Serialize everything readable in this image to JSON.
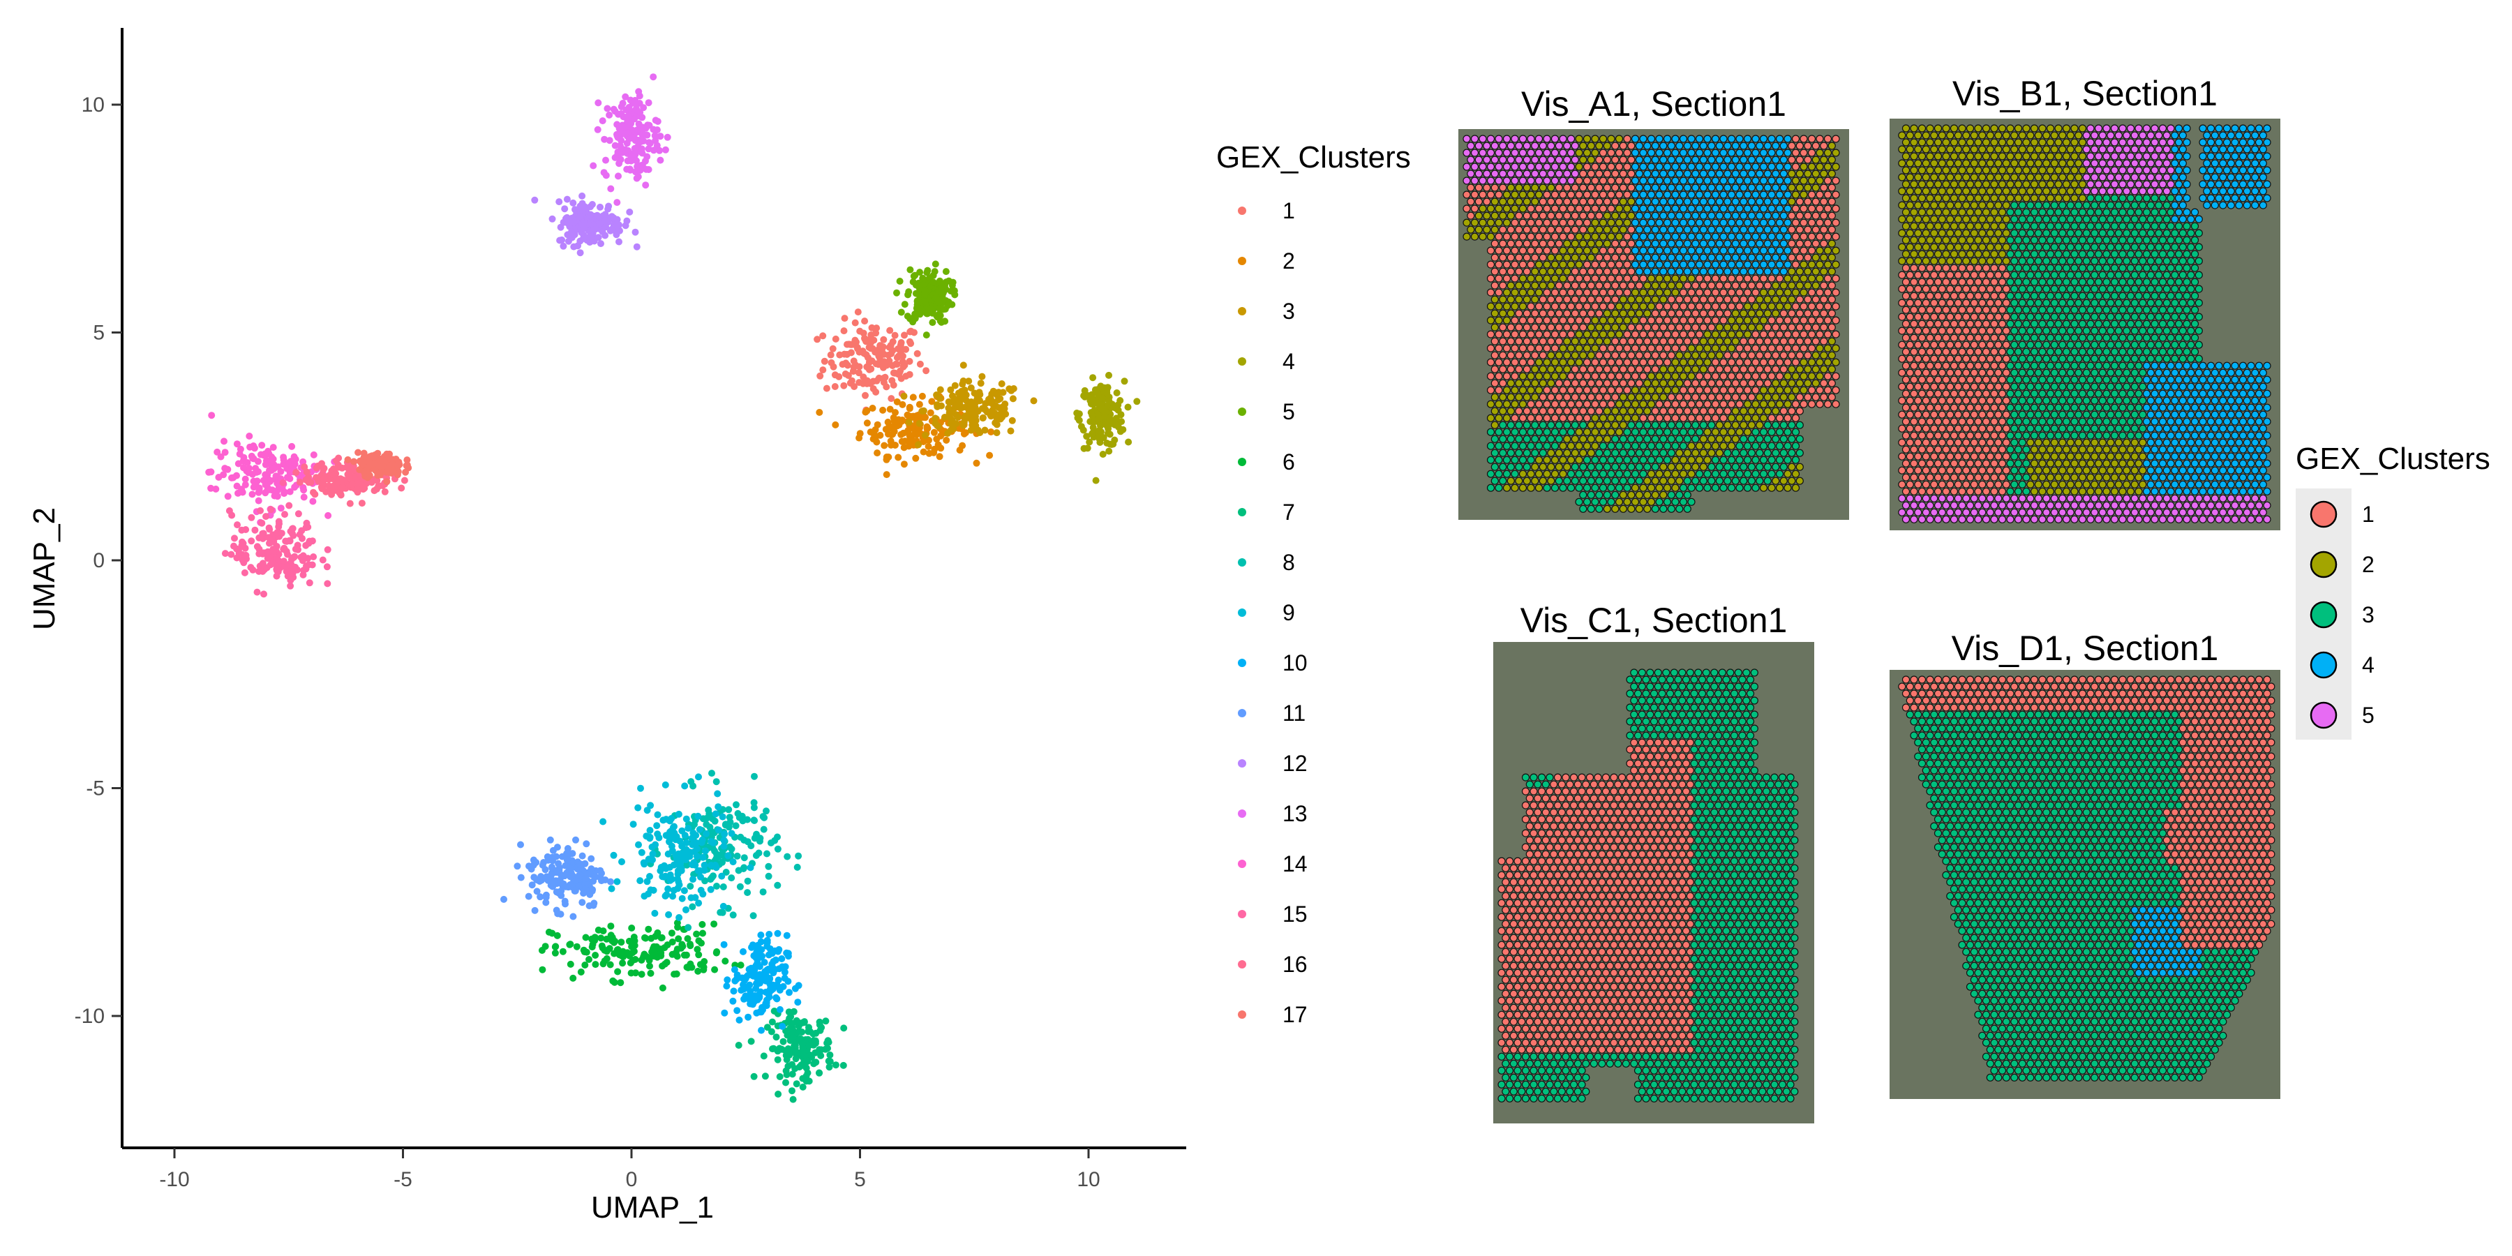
{
  "umap": {
    "x_label": "UMAP_1",
    "y_label": "UMAP_2",
    "x_ticks": [
      "-10",
      "-5",
      "0",
      "5",
      "10"
    ],
    "y_ticks": [
      "-10",
      "-5",
      "0",
      "5",
      "10"
    ]
  },
  "umap_legend": {
    "title": "GEX_Clusters",
    "items": [
      {
        "label": "1",
        "color": "#F8766D"
      },
      {
        "label": "2",
        "color": "#E58700"
      },
      {
        "label": "3",
        "color": "#C99800"
      },
      {
        "label": "4",
        "color": "#A3A500"
      },
      {
        "label": "5",
        "color": "#6BB100"
      },
      {
        "label": "6",
        "color": "#00BA38"
      },
      {
        "label": "7",
        "color": "#00BF7D"
      },
      {
        "label": "8",
        "color": "#00C0AF"
      },
      {
        "label": "9",
        "color": "#00BCD8"
      },
      {
        "label": "10",
        "color": "#00B0F6"
      },
      {
        "label": "11",
        "color": "#619CFF"
      },
      {
        "label": "12",
        "color": "#B983FF"
      },
      {
        "label": "13",
        "color": "#E76BF3"
      },
      {
        "label": "14",
        "color": "#FD61D1"
      },
      {
        "label": "15",
        "color": "#FF67A4"
      },
      {
        "label": "16",
        "color": "#FF6C91"
      },
      {
        "label": "17",
        "color": "#F8766D"
      }
    ]
  },
  "spatial_legend": {
    "title": "GEX_Clusters",
    "items": [
      {
        "label": "1",
        "color": "#F8766D"
      },
      {
        "label": "2",
        "color": "#A3A500"
      },
      {
        "label": "3",
        "color": "#00BF7D"
      },
      {
        "label": "4",
        "color": "#00B0F6"
      },
      {
        "label": "5",
        "color": "#E76BF3"
      }
    ]
  },
  "panels": [
    {
      "title": "Vis_A1, Section1"
    },
    {
      "title": "Vis_B1, Section1"
    },
    {
      "title": "Vis_C1, Section1"
    },
    {
      "title": "Vis_D1, Section1"
    }
  ],
  "chart_data": [
    {
      "type": "scatter",
      "title": "",
      "xlabel": "UMAP_1",
      "ylabel": "UMAP_2",
      "xlim": [
        -11,
        12
      ],
      "ylim": [
        -12.5,
        11.5
      ],
      "grid": false,
      "legend": "right",
      "series": [
        {
          "name": "1",
          "center": [
            5.3,
            4.4
          ],
          "spread": [
            0.9,
            0.7
          ]
        },
        {
          "name": "2",
          "center": [
            6.2,
            2.9
          ],
          "spread": [
            1.0,
            0.5
          ]
        },
        {
          "name": "3",
          "center": [
            7.5,
            3.3
          ],
          "spread": [
            0.9,
            0.5
          ]
        },
        {
          "name": "4",
          "center": [
            10.3,
            3.2
          ],
          "spread": [
            0.4,
            0.6
          ]
        },
        {
          "name": "5",
          "center": [
            6.5,
            5.8
          ],
          "spread": [
            0.4,
            0.5
          ]
        },
        {
          "name": "6",
          "center": [
            0.2,
            -8.6
          ],
          "spread": [
            1.6,
            0.5
          ]
        },
        {
          "name": "7",
          "center": [
            3.7,
            -10.7
          ],
          "spread": [
            0.6,
            0.6
          ]
        },
        {
          "name": "8",
          "center": [
            2.0,
            -6.3
          ],
          "spread": [
            1.0,
            1.0
          ]
        },
        {
          "name": "9",
          "center": [
            1.0,
            -6.5
          ],
          "spread": [
            0.9,
            1.0
          ]
        },
        {
          "name": "10",
          "center": [
            2.8,
            -9.2
          ],
          "spread": [
            0.5,
            0.8
          ]
        },
        {
          "name": "11",
          "center": [
            -1.4,
            -6.9
          ],
          "spread": [
            0.7,
            0.6
          ]
        },
        {
          "name": "12",
          "center": [
            -0.9,
            7.4
          ],
          "spread": [
            0.6,
            0.4
          ]
        },
        {
          "name": "13",
          "center": [
            0.0,
            9.3
          ],
          "spread": [
            0.5,
            0.8
          ]
        },
        {
          "name": "14",
          "center": [
            -8.0,
            1.9
          ],
          "spread": [
            1.0,
            0.6
          ]
        },
        {
          "name": "15",
          "center": [
            -7.8,
            0.2
          ],
          "spread": [
            0.8,
            0.7
          ]
        },
        {
          "name": "16",
          "center": [
            -6.2,
            1.8
          ],
          "spread": [
            0.8,
            0.3
          ]
        },
        {
          "name": "17",
          "center": [
            -5.5,
            2.1
          ],
          "spread": [
            0.4,
            0.2
          ]
        }
      ]
    },
    {
      "type": "scatter",
      "title": "Vis_A1, Section1",
      "legend": "right"
    },
    {
      "type": "scatter",
      "title": "Vis_B1, Section1",
      "legend": "right"
    },
    {
      "type": "scatter",
      "title": "Vis_C1, Section1",
      "legend": "right"
    },
    {
      "type": "scatter",
      "title": "Vis_D1, Section1",
      "legend": "right"
    }
  ]
}
